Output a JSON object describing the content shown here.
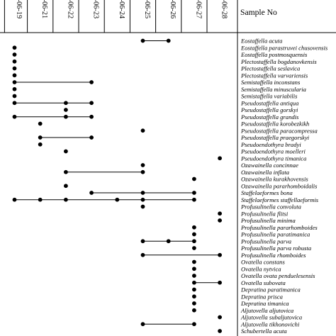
{
  "chart_data": {
    "type": "range-chart",
    "header_label": "Sample No",
    "columns": [
      "K-06-19",
      "K-06-21",
      "K-06-22",
      "K-06-23",
      "K-06-24",
      "K-06-25",
      "K-06-26",
      "K-06-27",
      "K-06-28"
    ],
    "taxa": [
      {
        "name": "Eostaffella acuta",
        "occurrences": [
          "K-06-25",
          "K-06-26"
        ]
      },
      {
        "name": "Eostaffella parastruvei chusovensis",
        "occurrences": [
          "K-06-19"
        ]
      },
      {
        "name": "Eostaffella postmosquensis",
        "occurrences": [
          "K-06-19"
        ]
      },
      {
        "name": "Plectostaffella bogdanovkensis",
        "occurrences": [
          "K-06-19"
        ]
      },
      {
        "name": "Plectostaffella seslavica",
        "occurrences": [
          "K-06-19"
        ]
      },
      {
        "name": "Plectostaffella varvariensis",
        "occurrences": [
          "K-06-19"
        ]
      },
      {
        "name": "Semistaffella inconstans",
        "occurrences": [
          "K-06-19",
          "K-06-23"
        ]
      },
      {
        "name": "Semistaffella minuscularia",
        "occurrences": [
          "K-06-19"
        ]
      },
      {
        "name": "Semistaffella variabilis",
        "occurrences": [
          "K-06-19"
        ]
      },
      {
        "name": "Pseudostaffella antiqua",
        "occurrences": [
          "K-06-19",
          "K-06-22",
          "K-06-23"
        ]
      },
      {
        "name": "Pseudostaffella gorskyi",
        "occurrences": [
          "K-06-22"
        ]
      },
      {
        "name": "Pseudostaffella grandis",
        "occurrences": [
          "K-06-19",
          "K-06-22",
          "K-06-23"
        ]
      },
      {
        "name": "Pseudostaffella korobezkikh",
        "occurrences": [
          "K-06-21"
        ]
      },
      {
        "name": "Pseudostaffella paracompressa",
        "occurrences": [
          "K-06-25"
        ]
      },
      {
        "name": "Pseudostaffella praegorskyi",
        "occurrences": [
          "K-06-21",
          "K-06-23"
        ]
      },
      {
        "name": "Pseudoendothyra bradyi",
        "occurrences": [
          "K-06-21"
        ]
      },
      {
        "name": "Pseudoendothyra moelleri",
        "occurrences": [
          "K-06-22"
        ]
      },
      {
        "name": "Pseudoendothyra timanica",
        "occurrences": [
          "K-06-28"
        ]
      },
      {
        "name": "Ozawainella concinnae",
        "occurrences": [
          "K-06-25"
        ]
      },
      {
        "name": "Ozawainella inflata",
        "occurrences": [
          "K-06-22",
          "K-06-25"
        ]
      },
      {
        "name": "Ozawainella kurakhovensis",
        "occurrences": [
          "K-06-27"
        ]
      },
      {
        "name": "Ozawainella pararhomboidalis",
        "occurrences": [
          "K-06-22"
        ]
      },
      {
        "name": "Staffelaeformes bona",
        "occurrences": [
          "K-06-23",
          "K-06-25",
          "K-06-27"
        ]
      },
      {
        "name": "Staffelaeformes staffellaeformis",
        "occurrences": [
          "K-06-19",
          "K-06-21",
          "K-06-22",
          "K-06-24",
          "K-06-25",
          "K-06-27"
        ]
      },
      {
        "name": "Profusulinella convoluta",
        "occurrences": [
          "K-06-25"
        ]
      },
      {
        "name": "Profusulinella flitsi",
        "occurrences": [
          "K-06-28"
        ]
      },
      {
        "name": "Profusulinella minima",
        "occurrences": [
          "K-06-28"
        ]
      },
      {
        "name": "Profusulinella pararhomboides",
        "occurrences": [
          "K-06-27"
        ]
      },
      {
        "name": "Profusulinella paratimanica",
        "occurrences": [
          "K-06-27"
        ]
      },
      {
        "name": "Profusulinella parva",
        "occurrences": [
          "K-06-25",
          "K-06-26",
          "K-06-27"
        ]
      },
      {
        "name": "Profusulinella parva robusta",
        "occurrences": [
          "K-06-27"
        ]
      },
      {
        "name": "Profusulinella rhomboides",
        "occurrences": [
          "K-06-25",
          "K-06-28"
        ]
      },
      {
        "name": "Ovatella constans",
        "occurrences": [
          "K-06-27"
        ]
      },
      {
        "name": "Ovatella nytvica",
        "occurrences": [
          "K-06-27"
        ]
      },
      {
        "name": "Ovatella ovata penduelesensis",
        "occurrences": [
          "K-06-27"
        ]
      },
      {
        "name": "Ovatella subovata",
        "occurrences": [
          "K-06-27",
          "K-06-28"
        ]
      },
      {
        "name": "Depratina paratimanica",
        "occurrences": [
          "K-06-27"
        ]
      },
      {
        "name": "Depratina prisca",
        "occurrences": [
          "K-06-27"
        ]
      },
      {
        "name": "Depratina timanica",
        "occurrences": [
          "K-06-27"
        ]
      },
      {
        "name": "Aljutovella aljutovica",
        "occurrences": [
          "K-06-27"
        ]
      },
      {
        "name": "Aljutovella subaljutovica",
        "occurrences": [
          "K-06-28"
        ]
      },
      {
        "name": "Aljutovella tikhonovichi",
        "occurrences": [
          "K-06-25",
          "K-06-27"
        ]
      },
      {
        "name": "Schubertella acuta",
        "occurrences": [
          "K-06-28"
        ]
      }
    ],
    "connect_occurrences": true,
    "grid": false,
    "legend": "none"
  }
}
